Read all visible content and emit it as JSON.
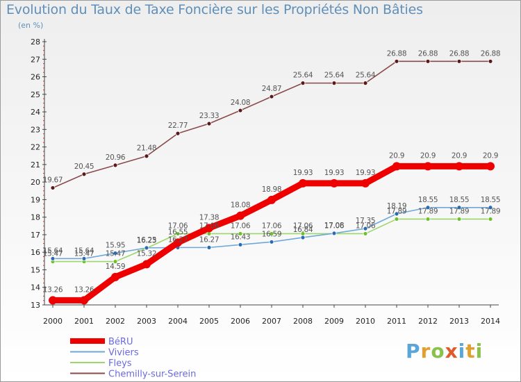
{
  "header": {
    "title": "Evolution du Taux de Taxe Foncière sur les Propriétés Non Bâties",
    "unit": "(en %)"
  },
  "logo": {
    "letters": [
      "P",
      "r",
      "o",
      "x",
      "i",
      "t",
      "i"
    ],
    "colors": [
      "#5aa6d8",
      "#e0a030",
      "#89c24a",
      "#e05a2a",
      "#5aa6d8",
      "#e0a030",
      "#89c24a"
    ]
  },
  "chart_data": {
    "type": "line",
    "title": "Evolution du Taux de Taxe Foncière sur les Propriétés Non Bâties",
    "ylabel": "(en %)",
    "xlabel": "",
    "x": [
      "2000",
      "2001",
      "2002",
      "2003",
      "2004",
      "2005",
      "2006",
      "2007",
      "2008",
      "2009",
      "2010",
      "2011",
      "2012",
      "2013",
      "2014"
    ],
    "ylim": [
      13,
      28
    ],
    "yticks": [
      13,
      14,
      15,
      16,
      17,
      18,
      19,
      20,
      21,
      22,
      23,
      24,
      25,
      26,
      27,
      28
    ],
    "grid": false,
    "legend": "bottom-left",
    "series": [
      {
        "name": "BéRU",
        "color": "#ee0000",
        "marker": "#ee0000",
        "values": [
          13.26,
          13.26,
          14.59,
          15.32,
          16.55,
          17.38,
          18.08,
          18.98,
          19.93,
          19.93,
          19.93,
          20.9,
          20.9,
          20.9,
          20.9
        ],
        "labels": [
          "13.26",
          "13.26",
          "14.59",
          "15.32",
          "16.55",
          "17.38",
          "18.08",
          "18.98",
          "19.93",
          "19.93",
          "19.93",
          "20.9",
          "20.9",
          "20.9",
          "20.9"
        ]
      },
      {
        "name": "Viviers",
        "color": "#6fa8d8",
        "marker": "#2b6cb0",
        "values": [
          15.64,
          15.64,
          15.95,
          16.25,
          16.27,
          16.27,
          16.43,
          16.59,
          16.84,
          17.08,
          17.35,
          18.19,
          18.55,
          18.55,
          18.55
        ],
        "labels": [
          "15.64",
          "15.64",
          "15.95",
          "16.25",
          "16.27",
          "16.27",
          "16.43",
          "16.59",
          "16.84",
          "17.08",
          "17.35",
          "18.19",
          "18.55",
          "18.55",
          "18.55"
        ]
      },
      {
        "name": "Fleys",
        "color": "#9bd66b",
        "marker": "#6fbf2c",
        "values": [
          15.47,
          15.47,
          15.47,
          16.23,
          17.06,
          17.06,
          17.06,
          17.06,
          17.06,
          17.06,
          17.06,
          17.89,
          17.89,
          17.89,
          17.89
        ],
        "labels": [
          "15.47",
          "15.47",
          "15.47",
          "16.23",
          "17.06",
          "17.06",
          "17.06",
          "17.06",
          "17.06",
          "17.06",
          "17.06",
          "17.89",
          "17.89",
          "17.89",
          "17.89"
        ]
      },
      {
        "name": "Chemilly-sur-Serein",
        "color": "#8a4a4a",
        "marker": "#5a1a1a",
        "values": [
          19.67,
          20.45,
          20.96,
          21.48,
          22.77,
          23.33,
          24.08,
          24.87,
          25.64,
          25.64,
          25.64,
          26.88,
          26.88,
          26.88,
          26.88
        ],
        "labels": [
          "19.67",
          "20.45",
          "20.96",
          "21.48",
          "22.77",
          "23.33",
          "24.08",
          "24.87",
          "25.64",
          "25.64",
          "25.64",
          "26.88",
          "26.88",
          "26.88",
          "26.88"
        ]
      }
    ]
  }
}
